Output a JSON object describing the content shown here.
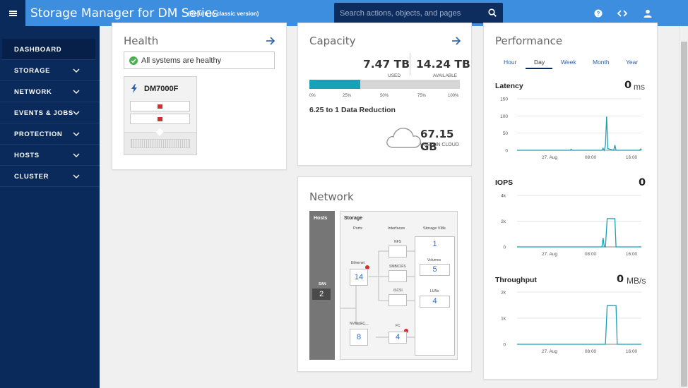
{
  "header": {
    "title": "Storage Manager for DM Series",
    "classic_link": "(Return to classic version)",
    "search_placeholder": "Search actions, objects, and pages"
  },
  "sidebar": {
    "items": [
      {
        "label": "DASHBOARD",
        "active": true
      },
      {
        "label": "STORAGE"
      },
      {
        "label": "NETWORK"
      },
      {
        "label": "EVENTS & JOBS"
      },
      {
        "label": "PROTECTION"
      },
      {
        "label": "HOSTS"
      },
      {
        "label": "CLUSTER"
      }
    ]
  },
  "health": {
    "title": "Health",
    "status": "All systems are healthy",
    "system_name": "DM7000F",
    "status_color": "#4caf50"
  },
  "capacity": {
    "title": "Capacity",
    "used_value": "7.47 TB",
    "used_label": "USED",
    "available_value": "14.24 TB",
    "available_label": "AVAILABLE",
    "used_fraction": 0.34,
    "ticks": [
      "0%",
      "25%",
      "50%",
      "75%",
      "100%"
    ],
    "reduction": "6.25 to 1 Data Reduction",
    "cloud_value": "67.15 GB",
    "cloud_label": "USED IN CLOUD",
    "accent_color": "#17a2b8"
  },
  "network": {
    "title": "Network",
    "hosts_label": "Hosts",
    "san_label": "SAN",
    "san_count": "2",
    "storage_label": "Storage",
    "ports_label": "Ports",
    "interfaces_label": "Interfaces",
    "svms_label": "Storage VMs",
    "ethernet_label": "Ethernet",
    "ethernet_count": "14",
    "nvme_fc_label": "NVMe/FC",
    "nvme_fc_count": "8",
    "nfs_label": "NFS",
    "smb_label": "SMB/CIFS",
    "iscsi_label": "iSCSI",
    "fc_label": "FC",
    "fc_count": "4",
    "svm_count": "1",
    "volumes_label": "Volumes",
    "volumes_count": "5",
    "luns_label": "LUNs",
    "luns_count": "4"
  },
  "performance": {
    "title": "Performance",
    "tabs": [
      "Hour",
      "Day",
      "Week",
      "Month",
      "Year"
    ],
    "active_tab": "Day",
    "latency": {
      "label": "Latency",
      "value": "0",
      "unit": "ms"
    },
    "iops": {
      "label": "IOPS",
      "value": "0",
      "unit": ""
    },
    "throughput": {
      "label": "Throughput",
      "value": "0",
      "unit": "MB/s"
    },
    "line_color": "#17a2b8"
  },
  "chart_data": [
    {
      "type": "line",
      "title": "Latency",
      "xlabel": "",
      "ylabel": "",
      "x_ticks": [
        "27. Aug",
        "08:00",
        "16:00"
      ],
      "y_ticks": [
        "0",
        "50",
        "100",
        "150"
      ],
      "ylim": [
        0,
        150
      ],
      "x": [
        0,
        9.0,
        9.2,
        9.35,
        9.5,
        9.7,
        9.9,
        10.0,
        10.3,
        10.6,
        14.4,
        14.6,
        14.8,
        15.0,
        15.2,
        15.4,
        16.4,
        16.6,
        16.8,
        17.2,
        17.4,
        17.6,
        20.8,
        21.0,
        21.1
      ],
      "y": [
        0,
        0,
        3,
        0,
        0,
        0,
        0,
        0,
        0,
        0,
        0,
        6,
        0,
        15,
        98,
        5,
        0,
        15,
        0,
        0,
        0,
        0,
        0,
        4,
        0
      ]
    },
    {
      "type": "line",
      "title": "IOPS",
      "xlabel": "",
      "ylabel": "",
      "x_ticks": [
        "27. Aug",
        "08:00",
        "16:00"
      ],
      "y_ticks": [
        "0",
        "2k",
        "4k"
      ],
      "ylim": [
        0,
        4000
      ],
      "x": [
        0,
        14.4,
        14.6,
        14.8,
        15.0,
        15.3,
        15.5,
        16.6,
        16.8,
        21.1
      ],
      "y": [
        0,
        0,
        700,
        0,
        0,
        2200,
        2200,
        2200,
        0,
        0
      ]
    },
    {
      "type": "line",
      "title": "Throughput",
      "xlabel": "",
      "ylabel": "",
      "x_ticks": [
        "27. Aug",
        "08:00",
        "16:00"
      ],
      "y_ticks": [
        "0",
        "1k",
        "2k"
      ],
      "ylim": [
        0,
        2000
      ],
      "x": [
        0,
        15.0,
        15.3,
        16.8,
        17.0,
        21.1
      ],
      "y": [
        0,
        0,
        1480,
        1480,
        0,
        0
      ]
    }
  ]
}
